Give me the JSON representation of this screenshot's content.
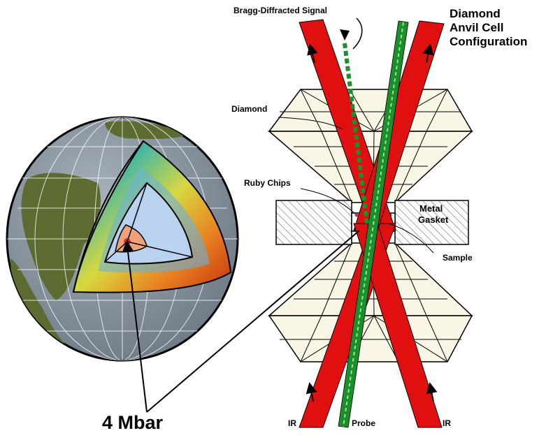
{
  "labels": {
    "bragg": "Bragg-Diffracted Signal",
    "title_line1": "Diamond",
    "title_line2": "Anvil Cell",
    "title_line3": "Configuration",
    "diamond": "Diamond",
    "ruby_chips": "Ruby Chips",
    "metal": "Metal",
    "gasket": "Gasket",
    "sample": "Sample",
    "ir_left": "IR",
    "ir_right": "IR",
    "probe": "Probe",
    "pressure": "4 Mbar"
  },
  "colors": {
    "ir_beam": "#e01010",
    "probe_beam": "#1a8f2a",
    "diamond_fill": "#faf6e6",
    "ocean": "#8f9ba7",
    "land": "#5c6b2f",
    "mantle_slice": "#b8d2f0",
    "core_inner": "#f0a07a"
  }
}
